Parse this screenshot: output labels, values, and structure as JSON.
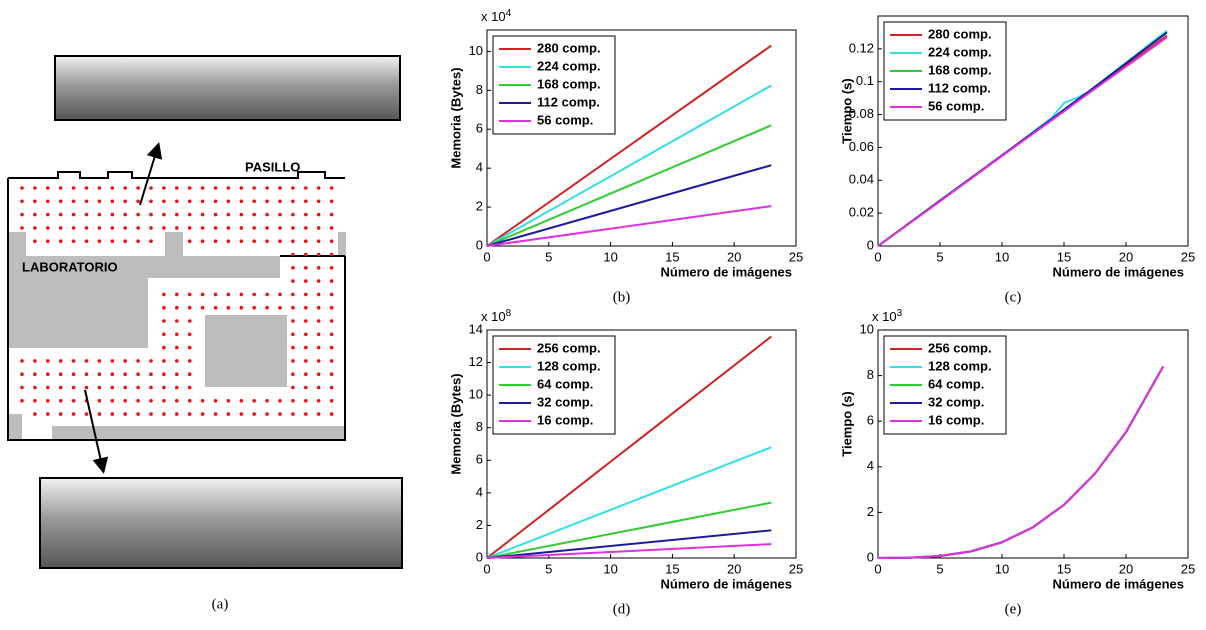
{
  "map": {
    "corridor_label": "PASILLO",
    "lab_label": "LABORATORIO",
    "caption": "(a)"
  },
  "chart_data": [
    {
      "type": "line",
      "caption": "(b)",
      "x_label": "Número de imágenes",
      "y_label": "Memoria (Bytes)",
      "y_multiplier": "x 10",
      "y_multiplier_exponent": "4",
      "legend": "upper left",
      "x": [
        0,
        23
      ],
      "xlim": [
        0,
        25
      ],
      "xticks": [
        0,
        5,
        10,
        15,
        20,
        25
      ],
      "ylim": [
        0,
        11.1
      ],
      "yticks": [
        0,
        2,
        4,
        6,
        8,
        10
      ],
      "series": [
        {
          "name": "280 comp.",
          "color": "#d42020",
          "values": [
            0,
            10.3
          ]
        },
        {
          "name": "224 comp.",
          "color": "#30e0e8",
          "values": [
            0,
            8.25
          ]
        },
        {
          "name": "168 comp.",
          "color": "#30cc30",
          "values": [
            0,
            6.2
          ]
        },
        {
          "name": "112 comp.",
          "color": "#1a1aa0",
          "values": [
            0,
            4.15
          ]
        },
        {
          "name": "56 comp.",
          "color": "#e030e0",
          "values": [
            0,
            2.05
          ]
        }
      ]
    },
    {
      "type": "line",
      "caption": "(c)",
      "x_label": "Número de imágenes",
      "y_label": "Tiempo (s)",
      "legend": "upper left",
      "x": [
        0,
        5,
        10,
        14,
        15,
        16,
        17,
        23.3
      ],
      "xlim": [
        0,
        25
      ],
      "xticks": [
        0,
        5,
        10,
        15,
        20,
        25
      ],
      "ylim": [
        0,
        0.14
      ],
      "yticks": [
        0,
        0.02,
        0.04,
        0.06,
        0.08,
        0.1,
        0.12
      ],
      "series": [
        {
          "name": "280 comp.",
          "color": "#d42020",
          "values": [
            0,
            0.0275,
            0.055,
            0.077,
            0.0825,
            0.088,
            0.0935,
            0.128
          ]
        },
        {
          "name": "224 comp.",
          "color": "#30e0e8",
          "values": [
            0,
            0.0275,
            0.055,
            0.078,
            0.087,
            0.09,
            0.094,
            0.131
          ]
        },
        {
          "name": "168 comp.",
          "color": "#30cc30",
          "values": [
            0,
            0.0278,
            0.055,
            0.077,
            0.083,
            0.088,
            0.094,
            0.13
          ]
        },
        {
          "name": "112 comp.",
          "color": "#1a1aa0",
          "values": [
            0,
            0.0275,
            0.0552,
            0.0772,
            0.083,
            0.0885,
            0.094,
            0.13
          ]
        },
        {
          "name": "56 comp.",
          "color": "#e030e0",
          "values": [
            0,
            0.0272,
            0.0548,
            0.0765,
            0.082,
            0.0875,
            0.093,
            0.127
          ]
        }
      ]
    },
    {
      "type": "line",
      "caption": "(d)",
      "x_label": "Número de imágenes",
      "y_label": "Memoria (Bytes)",
      "y_multiplier": "x 10",
      "y_multiplier_exponent": "8",
      "legend": "upper left",
      "x": [
        0,
        23
      ],
      "xlim": [
        0,
        25
      ],
      "xticks": [
        0,
        5,
        10,
        15,
        20,
        25
      ],
      "ylim": [
        0,
        14
      ],
      "yticks": [
        0,
        2,
        4,
        6,
        8,
        10,
        12,
        14
      ],
      "series": [
        {
          "name": "256 comp.",
          "color": "#d42020",
          "values": [
            0,
            13.6
          ]
        },
        {
          "name": "128 comp.",
          "color": "#30e0e8",
          "values": [
            0,
            6.8
          ]
        },
        {
          "name": "64 comp.",
          "color": "#30cc30",
          "values": [
            0,
            3.4
          ]
        },
        {
          "name": "32 comp.",
          "color": "#1a1aa0",
          "values": [
            0,
            1.7
          ]
        },
        {
          "name": "16 comp.",
          "color": "#e030e0",
          "values": [
            0,
            0.85
          ]
        }
      ]
    },
    {
      "type": "line",
      "caption": "(e)",
      "x_label": "Número de imágenes",
      "y_label": "Tiempo (s)",
      "y_multiplier": "x 10",
      "y_multiplier_exponent": "3",
      "legend": "upper left",
      "x": [
        0,
        2.5,
        5,
        7.5,
        10,
        12.5,
        15,
        17.5,
        20,
        23
      ],
      "xlim": [
        0,
        25
      ],
      "xticks": [
        0,
        5,
        10,
        15,
        20,
        25
      ],
      "ylim": [
        0,
        10
      ],
      "yticks": [
        0,
        2,
        4,
        6,
        8,
        10
      ],
      "series": [
        {
          "name": "256 comp.",
          "color": "#d42020",
          "values": [
            0,
            0.011,
            0.086,
            0.29,
            0.69,
            1.35,
            2.33,
            3.7,
            5.52,
            8.4
          ]
        },
        {
          "name": "128 comp.",
          "color": "#30e0e8",
          "values": [
            0,
            0.011,
            0.086,
            0.29,
            0.69,
            1.35,
            2.33,
            3.7,
            5.52,
            8.4
          ]
        },
        {
          "name": "64 comp.",
          "color": "#30cc30",
          "values": [
            0,
            0.011,
            0.086,
            0.29,
            0.69,
            1.35,
            2.33,
            3.7,
            5.52,
            8.4
          ]
        },
        {
          "name": "32 comp.",
          "color": "#1a1aa0",
          "values": [
            0,
            0.011,
            0.086,
            0.29,
            0.69,
            1.35,
            2.33,
            3.7,
            5.52,
            8.4
          ]
        },
        {
          "name": "16 comp.",
          "color": "#e030e0",
          "values": [
            0,
            0.011,
            0.086,
            0.29,
            0.69,
            1.35,
            2.33,
            3.7,
            5.52,
            8.4
          ]
        }
      ]
    }
  ]
}
